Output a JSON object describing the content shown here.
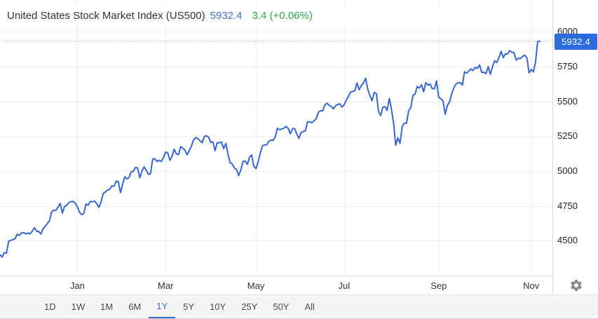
{
  "header": {
    "title": "United States Stock Market Index (US500)",
    "last_value": "5932.4",
    "change": "3.4 (+0.06%)"
  },
  "price_badge": "5932.4",
  "toolbar": {
    "buttons": [
      "1D",
      "1W",
      "1M",
      "6M",
      "1Y",
      "5Y",
      "10Y",
      "25Y",
      "50Y",
      "All"
    ],
    "active": "1Y"
  },
  "icons": {
    "settings": "gear-icon"
  },
  "colors": {
    "line": "#3866d0",
    "dotted_price_line": "#93a7d4",
    "badge_bg": "#2a6bdd",
    "badge_text": "#ffffff",
    "header_value": "#3b6fd4",
    "header_change": "#2fa64c",
    "grid": "#ededed",
    "axis": "#d9d9d9",
    "tick_label": "#222222",
    "toolbar_bg": "#f5f5f5",
    "active_button": "#3b6fd4"
  },
  "chart_data": {
    "type": "line",
    "title": "United States Stock Market Index (US500)",
    "series_name": "US500",
    "last_value": 5932.4,
    "change": 3.4,
    "change_percent": "+0.06%",
    "range_selected": "1Y",
    "grid": true,
    "legend": false,
    "x_unit": "trading-day index, 1Y window Nov 2023 - Nov 2024",
    "x_range": [
      0,
      251
    ],
    "ylim": [
      4251,
      6229
    ],
    "y_ticks": [
      6000,
      5750,
      5500,
      5250,
      5000,
      4750,
      4500
    ],
    "x_ticks": [
      {
        "label": "Jan",
        "t": 36
      },
      {
        "label": "Mar",
        "t": 77
      },
      {
        "label": "May",
        "t": 119
      },
      {
        "label": "Jul",
        "t": 160
      },
      {
        "label": "Sep",
        "t": 204
      },
      {
        "label": "Nov",
        "t": 247
      }
    ],
    "points": [
      [
        0,
        4400
      ],
      [
        1,
        4383
      ],
      [
        2,
        4415
      ],
      [
        3,
        4411
      ],
      [
        4,
        4496
      ],
      [
        5,
        4503
      ],
      [
        6,
        4508
      ],
      [
        7,
        4514
      ],
      [
        8,
        4547
      ],
      [
        9,
        4538
      ],
      [
        10,
        4556
      ],
      [
        11,
        4559
      ],
      [
        12,
        4550
      ],
      [
        13,
        4555
      ],
      [
        14,
        4551
      ],
      [
        15,
        4568
      ],
      [
        16,
        4594
      ],
      [
        17,
        4569
      ],
      [
        18,
        4567
      ],
      [
        19,
        4549
      ],
      [
        20,
        4586
      ],
      [
        21,
        4604
      ],
      [
        22,
        4623
      ],
      [
        23,
        4644
      ],
      [
        24,
        4707
      ],
      [
        25,
        4720
      ],
      [
        26,
        4719
      ],
      [
        27,
        4741
      ],
      [
        28,
        4768
      ],
      [
        29,
        4698
      ],
      [
        30,
        4746
      ],
      [
        31,
        4754
      ],
      [
        32,
        4775
      ],
      [
        33,
        4781
      ],
      [
        34,
        4783
      ],
      [
        35,
        4770
      ],
      [
        36,
        4743
      ],
      [
        37,
        4704
      ],
      [
        38,
        4688
      ],
      [
        39,
        4697
      ],
      [
        40,
        4764
      ],
      [
        41,
        4756
      ],
      [
        42,
        4783
      ],
      [
        43,
        4780
      ],
      [
        44,
        4784
      ],
      [
        45,
        4766
      ],
      [
        46,
        4739
      ],
      [
        47,
        4781
      ],
      [
        48,
        4840
      ],
      [
        49,
        4850
      ],
      [
        50,
        4865
      ],
      [
        51,
        4868
      ],
      [
        52,
        4894
      ],
      [
        53,
        4891
      ],
      [
        54,
        4928
      ],
      [
        55,
        4925
      ],
      [
        56,
        4846
      ],
      [
        57,
        4906
      ],
      [
        58,
        4959
      ],
      [
        59,
        4943
      ],
      [
        60,
        4954
      ],
      [
        61,
        4995
      ],
      [
        62,
        4998
      ],
      [
        63,
        5027
      ],
      [
        64,
        5022
      ],
      [
        65,
        4953
      ],
      [
        66,
        5001
      ],
      [
        67,
        5030
      ],
      [
        68,
        5006
      ],
      [
        69,
        4976
      ],
      [
        70,
        4981
      ],
      [
        71,
        5087
      ],
      [
        72,
        5089
      ],
      [
        73,
        5069
      ],
      [
        74,
        5078
      ],
      [
        75,
        5070
      ],
      [
        76,
        5096
      ],
      [
        77,
        5137
      ],
      [
        78,
        5131
      ],
      [
        79,
        5078
      ],
      [
        80,
        5105
      ],
      [
        81,
        5157
      ],
      [
        82,
        5124
      ],
      [
        83,
        5118
      ],
      [
        84,
        5175
      ],
      [
        85,
        5165
      ],
      [
        86,
        5150
      ],
      [
        87,
        5117
      ],
      [
        88,
        5149
      ],
      [
        89,
        5178
      ],
      [
        90,
        5225
      ],
      [
        91,
        5241
      ],
      [
        92,
        5234
      ],
      [
        93,
        5218
      ],
      [
        94,
        5204
      ],
      [
        95,
        5248
      ],
      [
        96,
        5254
      ],
      [
        97,
        5243
      ],
      [
        98,
        5206
      ],
      [
        99,
        5211
      ],
      [
        100,
        5147
      ],
      [
        101,
        5204
      ],
      [
        102,
        5202
      ],
      [
        103,
        5210
      ],
      [
        104,
        5161
      ],
      [
        105,
        5199
      ],
      [
        106,
        5123
      ],
      [
        107,
        5061
      ],
      [
        108,
        5051
      ],
      [
        109,
        5022
      ],
      [
        110,
        5011
      ],
      [
        111,
        4967
      ],
      [
        112,
        5011
      ],
      [
        113,
        5071
      ],
      [
        114,
        5072
      ],
      [
        115,
        5048
      ],
      [
        116,
        5100
      ],
      [
        117,
        5116
      ],
      [
        118,
        5036
      ],
      [
        119,
        5018
      ],
      [
        120,
        5064
      ],
      [
        121,
        5128
      ],
      [
        122,
        5181
      ],
      [
        123,
        5188
      ],
      [
        124,
        5188
      ],
      [
        125,
        5214
      ],
      [
        126,
        5223
      ],
      [
        127,
        5221
      ],
      [
        128,
        5247
      ],
      [
        129,
        5308
      ],
      [
        130,
        5297
      ],
      [
        131,
        5303
      ],
      [
        132,
        5308
      ],
      [
        133,
        5321
      ],
      [
        134,
        5307
      ],
      [
        135,
        5268
      ],
      [
        136,
        5305
      ],
      [
        137,
        5306
      ],
      [
        138,
        5267
      ],
      [
        139,
        5235
      ],
      [
        140,
        5278
      ],
      [
        141,
        5283
      ],
      [
        142,
        5291
      ],
      [
        143,
        5354
      ],
      [
        144,
        5353
      ],
      [
        145,
        5347
      ],
      [
        146,
        5361
      ],
      [
        147,
        5375
      ],
      [
        148,
        5421
      ],
      [
        149,
        5434
      ],
      [
        150,
        5432
      ],
      [
        151,
        5473
      ],
      [
        152,
        5487
      ],
      [
        153,
        5473
      ],
      [
        154,
        5465
      ],
      [
        155,
        5447
      ],
      [
        156,
        5469
      ],
      [
        157,
        5478
      ],
      [
        158,
        5483
      ],
      [
        159,
        5460
      ],
      [
        160,
        5475
      ],
      [
        161,
        5509
      ],
      [
        162,
        5537
      ],
      [
        163,
        5567
      ],
      [
        164,
        5573
      ],
      [
        165,
        5577
      ],
      [
        166,
        5633
      ],
      [
        167,
        5584
      ],
      [
        168,
        5615
      ],
      [
        169,
        5631
      ],
      [
        170,
        5667
      ],
      [
        171,
        5588
      ],
      [
        172,
        5544
      ],
      [
        173,
        5505
      ],
      [
        174,
        5565
      ],
      [
        175,
        5556
      ],
      [
        176,
        5428
      ],
      [
        177,
        5399
      ],
      [
        178,
        5459
      ],
      [
        179,
        5464
      ],
      [
        180,
        5436
      ],
      [
        181,
        5522
      ],
      [
        182,
        5446
      ],
      [
        183,
        5346
      ],
      [
        184,
        5186
      ],
      [
        185,
        5240
      ],
      [
        186,
        5200
      ],
      [
        187,
        5319
      ],
      [
        188,
        5344
      ],
      [
        189,
        5344
      ],
      [
        190,
        5434
      ],
      [
        191,
        5455
      ],
      [
        192,
        5543
      ],
      [
        193,
        5554
      ],
      [
        194,
        5608
      ],
      [
        195,
        5597
      ],
      [
        196,
        5620
      ],
      [
        197,
        5570
      ],
      [
        198,
        5635
      ],
      [
        199,
        5617
      ],
      [
        200,
        5626
      ],
      [
        201,
        5592
      ],
      [
        202,
        5592
      ],
      [
        203,
        5648
      ],
      [
        204,
        5529
      ],
      [
        205,
        5520
      ],
      [
        206,
        5503
      ],
      [
        207,
        5408
      ],
      [
        208,
        5471
      ],
      [
        209,
        5496
      ],
      [
        210,
        5554
      ],
      [
        211,
        5596
      ],
      [
        212,
        5626
      ],
      [
        213,
        5633
      ],
      [
        214,
        5635
      ],
      [
        215,
        5618
      ],
      [
        216,
        5714
      ],
      [
        217,
        5703
      ],
      [
        218,
        5719
      ],
      [
        219,
        5733
      ],
      [
        220,
        5722
      ],
      [
        221,
        5745
      ],
      [
        222,
        5738
      ],
      [
        223,
        5762
      ],
      [
        224,
        5709
      ],
      [
        225,
        5710
      ],
      [
        226,
        5700
      ],
      [
        227,
        5751
      ],
      [
        228,
        5696
      ],
      [
        229,
        5751
      ],
      [
        230,
        5792
      ],
      [
        231,
        5780
      ],
      [
        232,
        5815
      ],
      [
        233,
        5860
      ],
      [
        234,
        5815
      ],
      [
        235,
        5842
      ],
      [
        236,
        5841
      ],
      [
        237,
        5865
      ],
      [
        238,
        5854
      ],
      [
        239,
        5851
      ],
      [
        240,
        5797
      ],
      [
        241,
        5810
      ],
      [
        242,
        5808
      ],
      [
        243,
        5824
      ],
      [
        244,
        5833
      ],
      [
        245,
        5813
      ],
      [
        246,
        5705
      ],
      [
        247,
        5729
      ],
      [
        248,
        5713
      ],
      [
        249,
        5783
      ],
      [
        250,
        5929
      ],
      [
        251,
        5932.4
      ]
    ]
  }
}
